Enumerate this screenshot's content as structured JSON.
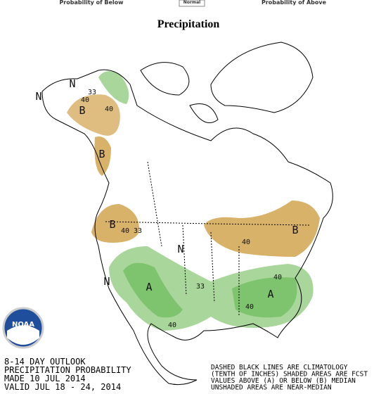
{
  "header": {
    "left_label": "Probability of Below",
    "center_label": "Normal",
    "right_label": "Probability of Above"
  },
  "title": "Precipitation",
  "map_labels": [
    "N",
    "N",
    "B",
    "33",
    "40",
    "40",
    "B",
    "B",
    "40",
    "33",
    "N",
    "N",
    "A",
    "33",
    "40",
    "B",
    "40",
    "A",
    "40",
    "40"
  ],
  "footer": [
    "8-14 DAY OUTLOOK",
    "PRECIPITATION PROBABILITY",
    "MADE  10 JUL 2014",
    "VALID  JUL 18 - 24, 2014"
  ],
  "notes": [
    "DASHED BLACK LINES ARE CLIMATOLOGY",
    "(TENTH OF INCHES) SHADED AREAS ARE FCST",
    "VALUES ABOVE (A) OR BELOW (B) MEDIAN",
    "UNSHADED AREAS ARE NEAR-MEDIAN"
  ],
  "logo": "NOAA"
}
